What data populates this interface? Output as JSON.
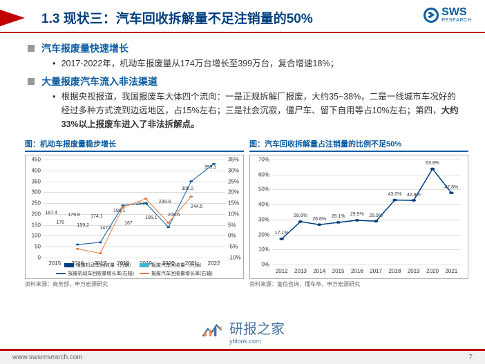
{
  "header": {
    "title": "1.3 现状三：汽车回收拆解量不足注销量的50%",
    "logo_main": "SWS",
    "logo_sub": "RESEARCH"
  },
  "bullets": [
    {
      "main": "汽车报废量快速增长",
      "subs": [
        "2017-2022年，机动车报废量从174万台增长至399万台，复合增速18%；"
      ]
    },
    {
      "main": "大量报废汽车流入非法渠道",
      "subs": [
        "根据央视报道，我国报废车大体四个流向：一是正规拆解厂报废，大约35~38%，二是一线城市车况好的经过多种方式流到边远地区，占15%左右；三是社会沉寂，僵尸车、留下自用等占10%左右；第四，<b>大约33%以上报废车进入了非法拆解点。</b>"
      ]
    }
  ],
  "chart1": {
    "title": "图：机动车报废量稳步增长",
    "type": "bar+line",
    "categories": [
      "2015",
      "2016",
      "2017",
      "2018",
      "2019",
      "2020",
      "2021",
      "2022"
    ],
    "bar1": {
      "label": "报废机动车回收量（万辆）",
      "color": "#003e7e",
      "values": [
        187.4,
        179.8,
        174.1,
        199.1,
        229.5,
        239.8,
        300.2,
        399.1
      ]
    },
    "bar2": {
      "label": "报废汽车回收量（万辆）",
      "color": "#3fb4d0",
      "values": [
        170,
        159.2,
        147.2,
        167,
        195.1,
        206.6,
        244.5,
        null
      ]
    },
    "line1": {
      "label": "报废机动车回收量增长率(右轴)",
      "color": "#0a5aa0",
      "values": [
        null,
        -4,
        -3,
        14,
        15,
        4,
        25,
        33
      ]
    },
    "line2": {
      "label": "报废汽车回收量增长率(右轴)",
      "color": "#e67a3c",
      "values": [
        null,
        -6,
        -8,
        13,
        17,
        6,
        18,
        null
      ]
    },
    "y_left": {
      "min": 0,
      "max": 450,
      "step": 50
    },
    "y_right": {
      "min": -10,
      "max": 35,
      "step": 5,
      "suffix": "%"
    },
    "source": "资料来源：商务部，申万宏源研究"
  },
  "chart2": {
    "title": "图：汽车回收拆解量占注销量的比例不足50%",
    "type": "line",
    "categories": [
      "2012",
      "2013",
      "2014",
      "2015",
      "2016",
      "2017",
      "2018",
      "2019",
      "2020",
      "2021"
    ],
    "series": {
      "color": "#003e7e",
      "values": [
        17.1,
        28.6,
        26.6,
        28.1,
        29.5,
        28.9,
        43.0,
        42.8,
        63.8,
        47.8
      ],
      "suffix": "%"
    },
    "y": {
      "min": 0,
      "max": 70,
      "step": 10,
      "suffix": "%"
    },
    "source": "资料来源：富伯咨询，懂车帝，申万宏源研究"
  },
  "footer": {
    "url": "www.swsresearch.com",
    "page": "7"
  },
  "watermark": {
    "text": "研报之家",
    "sub": "yblook.com"
  }
}
